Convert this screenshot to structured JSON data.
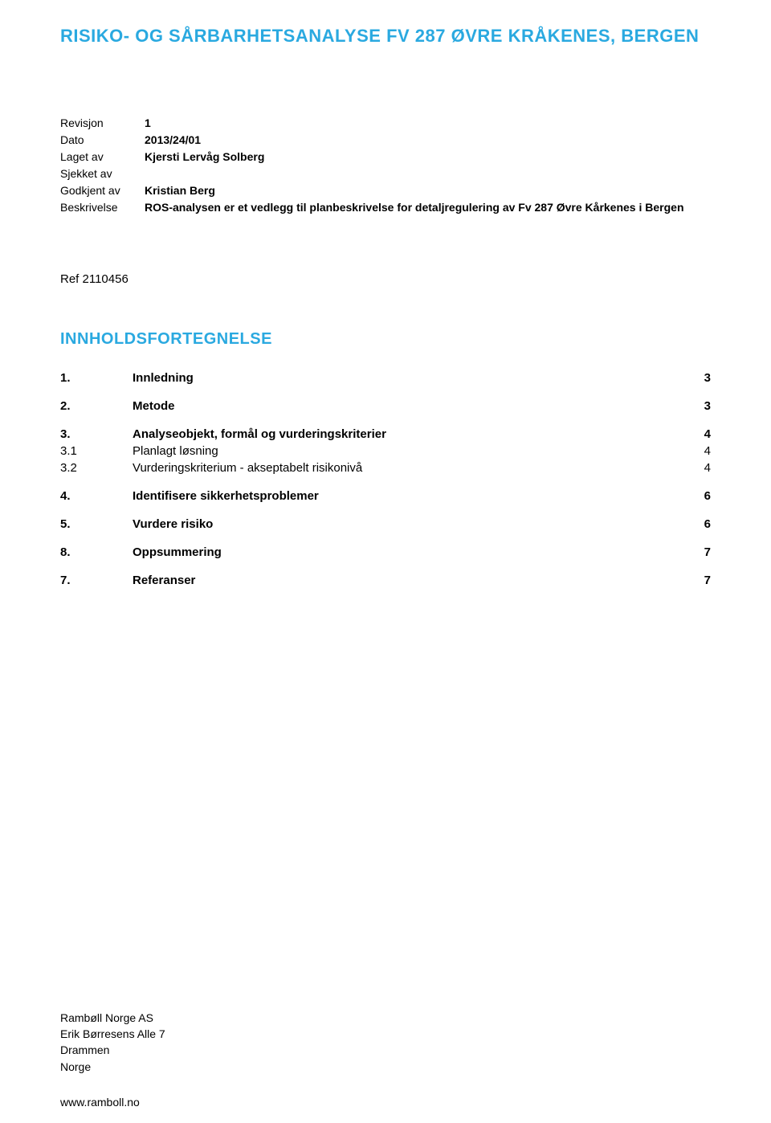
{
  "colors": {
    "accent": "#2aa9e0",
    "text": "#000000",
    "background": "#ffffff"
  },
  "title": "RISIKO- OG SÅRBARHETSANALYSE FV 287 ØVRE KRÅKENES, BERGEN",
  "meta": {
    "rows": [
      {
        "label": "Revisjon",
        "value": "1"
      },
      {
        "label": "Dato",
        "value": "2013/24/01"
      },
      {
        "label": "Laget av",
        "value": "Kjersti Lervåg Solberg"
      },
      {
        "label": "Sjekket av",
        "value": ""
      },
      {
        "label": "Godkjent av",
        "value": "Kristian Berg"
      },
      {
        "label": "Beskrivelse",
        "value": "ROS-analysen er et vedlegg til planbeskrivelse for detaljregulering av Fv 287 Øvre Kårkenes i Bergen"
      }
    ]
  },
  "ref": "Ref 2110456",
  "toc_title": "INNHOLDSFORTEGNELSE",
  "toc": [
    {
      "num": "1.",
      "label": "Innledning",
      "page": "3",
      "level": 1
    },
    {
      "num": "2.",
      "label": "Metode",
      "page": "3",
      "level": 1
    },
    {
      "num": "3.",
      "label": "Analyseobjekt, formål og vurderingskriterier",
      "page": "4",
      "level": 1
    },
    {
      "num": "3.1",
      "label": "Planlagt løsning",
      "page": "4",
      "level": 2
    },
    {
      "num": "3.2",
      "label": "Vurderingskriterium - akseptabelt risikonivå",
      "page": "4",
      "level": 2
    },
    {
      "num": "4.",
      "label": "Identifisere sikkerhetsproblemer",
      "page": "6",
      "level": 1
    },
    {
      "num": "5.",
      "label": "Vurdere risiko",
      "page": "6",
      "level": 1
    },
    {
      "num": "8.",
      "label": "Oppsummering",
      "page": "7",
      "level": 1
    },
    {
      "num": "7.",
      "label": "Referanser",
      "page": "7",
      "level": 1
    }
  ],
  "footer": {
    "company": "Rambøll Norge AS",
    "address": "Erik Børresens Alle 7",
    "city": "Drammen",
    "country": "Norge",
    "url": "www.ramboll.no"
  }
}
